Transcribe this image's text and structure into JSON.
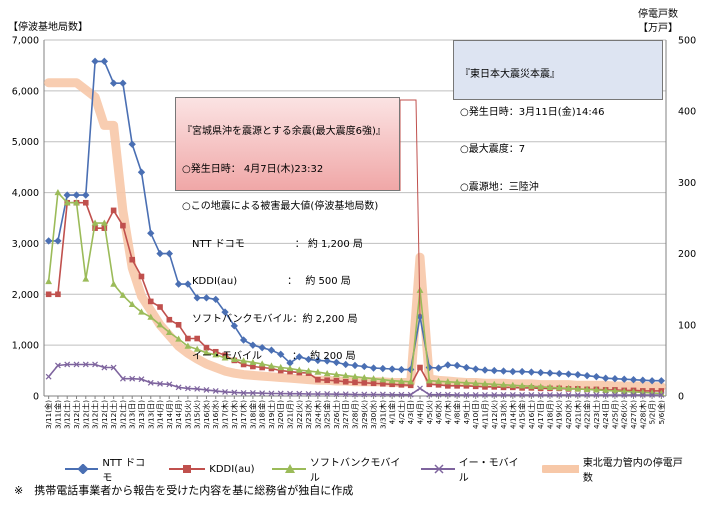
{
  "chart_data": {
    "type": "line",
    "ylabel_left": "【停波基地局数】",
    "ylabel_right": "停電戸数\n【万戸】",
    "ylim_left": [
      0,
      7000
    ],
    "ylim_right": [
      0,
      500
    ],
    "yticks_left": [
      "0",
      "1,000",
      "2,000",
      "3,000",
      "4,000",
      "5,000",
      "6,000",
      "7,000"
    ],
    "yticks_right": [
      "0",
      "100",
      "200",
      "300",
      "400",
      "500"
    ],
    "x": [
      "3/11(金)",
      "3/11(金)",
      "3/12(土)",
      "3/12(土)",
      "3/12(土)",
      "3/12(土)",
      "3/12(土)",
      "3/12(土)",
      "3/12(土)",
      "3/13(日)",
      "3/13(日)",
      "3/13(日)",
      "3/14(月)",
      "3/14(月)",
      "3/14(月)",
      "3/15(火)",
      "3/15(火)",
      "3/16(水)",
      "3/16(水)",
      "3/17(木)",
      "3/17(木)",
      "3/17(木)",
      "3/18(金)",
      "3/18(金)",
      "3/19(土)",
      "3/20(日)",
      "3/21(月)",
      "3/22(火)",
      "3/23(水)",
      "3/24(木)",
      "3/25(金)",
      "3/26(土)",
      "3/27(日)",
      "3/28(月)",
      "3/29(火)",
      "3/30(水)",
      "3/31(木)",
      "4/1(金)",
      "4/2(土)",
      "4/3(日)",
      "4/4(月)",
      "4/5(火)",
      "4/6(水)",
      "4/7(木)",
      "4/8(金)",
      "4/9(土)",
      "4/10(日)",
      "4/11(月)",
      "4/12(火)",
      "4/13(水)",
      "4/14(木)",
      "4/15(金)",
      "4/16(土)",
      "4/17(日)",
      "4/18(月)",
      "4/19(火)",
      "4/20(水)",
      "4/21(木)",
      "4/22(金)",
      "4/23(土)",
      "4/24(日)",
      "4/25(月)",
      "4/26(火)",
      "4/27(水)",
      "4/28(木)",
      "5/2(月)",
      "5/6(金)"
    ],
    "series": [
      {
        "name": "NTT ドコモ",
        "axis": "left",
        "color": "#4a6fb3",
        "marker": "diamond",
        "values": [
          3050,
          3050,
          3950,
          3950,
          3950,
          6580,
          6580,
          6150,
          6150,
          4950,
          4400,
          3200,
          2800,
          2800,
          2200,
          2200,
          1930,
          1930,
          1900,
          1650,
          1380,
          1100,
          1000,
          950,
          900,
          820,
          650,
          770,
          720,
          700,
          690,
          660,
          620,
          600,
          580,
          550,
          540,
          530,
          520,
          520,
          1560,
          560,
          550,
          610,
          600,
          560,
          530,
          510,
          500,
          490,
          480,
          480,
          470,
          460,
          450,
          440,
          430,
          420,
          400,
          380,
          350,
          340,
          330,
          320,
          310,
          300,
          300
        ]
      },
      {
        "name": "KDDI(au)",
        "axis": "left",
        "color": "#c0504d",
        "marker": "square",
        "values": [
          2000,
          2000,
          3800,
          3800,
          3800,
          3300,
          3300,
          3650,
          3350,
          2680,
          2350,
          1860,
          1750,
          1500,
          1400,
          1130,
          1130,
          950,
          870,
          800,
          700,
          620,
          580,
          560,
          540,
          500,
          480,
          460,
          450,
          320,
          310,
          300,
          280,
          270,
          260,
          250,
          240,
          230,
          220,
          210,
          560,
          230,
          220,
          200,
          200,
          200,
          190,
          180,
          180,
          170,
          170,
          160,
          160,
          150,
          150,
          150,
          140,
          140,
          130,
          130,
          120,
          120,
          110,
          110,
          100,
          100,
          100
        ]
      },
      {
        "name": "ソフトバンクモバイル",
        "axis": "left",
        "color": "#9bbb59",
        "marker": "triangle",
        "values": [
          2250,
          4000,
          3800,
          3800,
          2300,
          3400,
          3400,
          2200,
          1980,
          1800,
          1650,
          1550,
          1400,
          1250,
          1120,
          980,
          920,
          850,
          810,
          750,
          720,
          690,
          660,
          630,
          590,
          560,
          540,
          510,
          490,
          470,
          440,
          420,
          400,
          380,
          360,
          340,
          320,
          300,
          290,
          280,
          2080,
          300,
          290,
          280,
          270,
          260,
          250,
          240,
          230,
          220,
          210,
          200,
          190,
          180,
          170,
          160,
          150,
          140,
          130,
          120,
          110,
          100,
          90,
          80,
          70,
          60,
          50
        ]
      },
      {
        "name": "イー・モバイル",
        "axis": "left",
        "color": "#7e649e",
        "marker": "x",
        "values": [
          380,
          600,
          620,
          620,
          620,
          620,
          560,
          560,
          340,
          340,
          330,
          260,
          240,
          230,
          170,
          150,
          140,
          120,
          100,
          80,
          70,
          60,
          60,
          55,
          50,
          50,
          45,
          45,
          40,
          40,
          40,
          35,
          35,
          30,
          30,
          30,
          30,
          25,
          25,
          25,
          150,
          25,
          25,
          25,
          20,
          20,
          20,
          20,
          20,
          20,
          20,
          20,
          20,
          20,
          20,
          20,
          20,
          20,
          20,
          20,
          20,
          20,
          20,
          20,
          20,
          20,
          20
        ]
      },
      {
        "name": "東北電力管内の停電戸数",
        "axis": "right",
        "color": "#f7c8a8",
        "marker": "none",
        "values": [
          440,
          440,
          440,
          440,
          430,
          420,
          380,
          380,
          260,
          180,
          140,
          120,
          100,
          85,
          70,
          60,
          52,
          45,
          40,
          35,
          32,
          30,
          29,
          28,
          27,
          26,
          25,
          24,
          23,
          22,
          22,
          21,
          21,
          20,
          20,
          20,
          20,
          19,
          19,
          19,
          195,
          24,
          22,
          21,
          20,
          19,
          19,
          18,
          18,
          18,
          17,
          17,
          17,
          16,
          16,
          16,
          16,
          15,
          15,
          15,
          15,
          14,
          14,
          14,
          14,
          13,
          13
        ]
      }
    ]
  },
  "info_box_main": {
    "title": "『東日本大震災本震』",
    "lines": [
      "○発生日時：3月11日(金)14:46",
      "○最大震度：7",
      "○震源地：三陸沖"
    ]
  },
  "info_box_aftershock": {
    "title": "『宮城県沖を震源とする余震(最大震度6強)』",
    "lines": [
      "○発生日時： 4月7日(木)23:32",
      "○この地震による被害最大値(停波基地局数)",
      "　NTT ドコモ　　　　　： 約 1,200 局",
      "　KDDI(au)　　　　　：　 約 500 局",
      "　ソフトバンクモバイル：約 2,200 局",
      "　イー・モバイル　　　：　 約 200 局"
    ]
  },
  "footnote": "※　携帯電話事業者から報告を受けた内容を基に総務省が独自に作成",
  "colors": {
    "grid": "#bfbfbf",
    "box_main_bg": "#dde4f2",
    "box_after_bg_top": "#fbe3e3",
    "box_after_bg_bottom": "#f0a7a7"
  }
}
